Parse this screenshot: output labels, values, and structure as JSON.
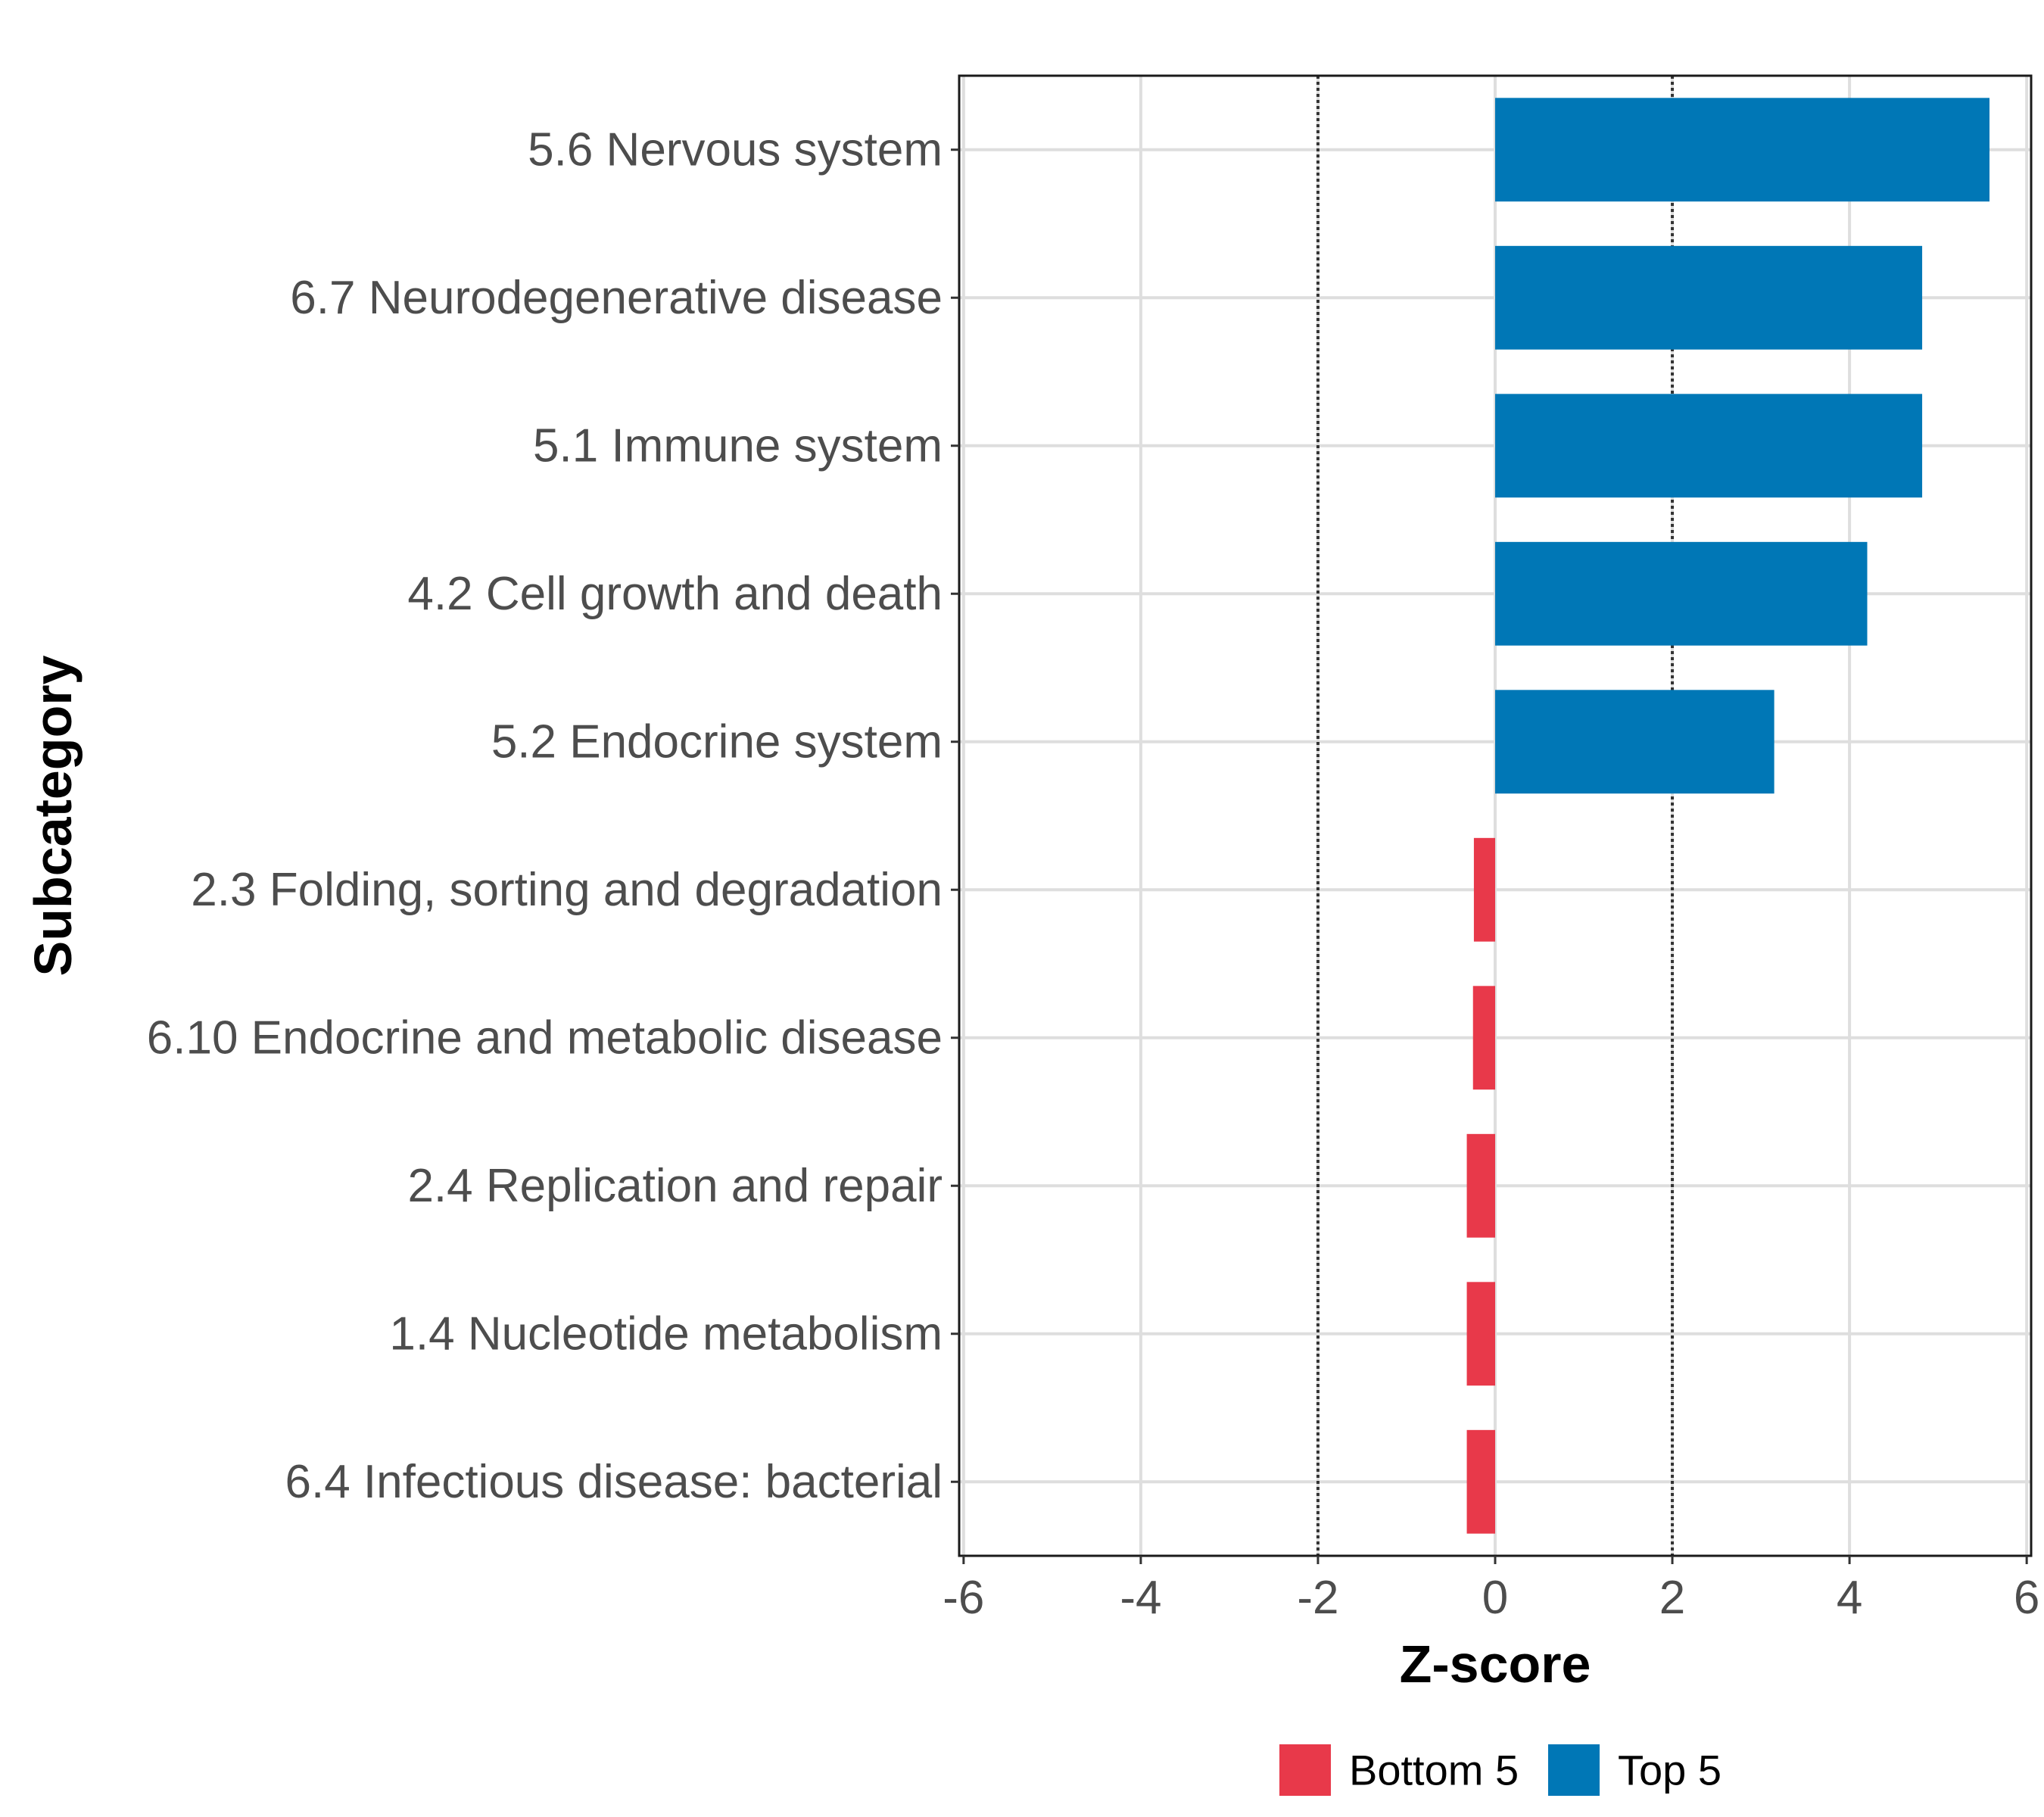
{
  "chart_data": {
    "type": "bar",
    "orientation": "horizontal",
    "xlabel": "Z-score",
    "ylabel": "Subcategory",
    "xlim": [
      -6.05,
      6.05
    ],
    "xticks": [
      -6,
      -4,
      -2,
      0,
      2,
      4,
      6
    ],
    "xtick_labels": [
      "-6",
      "-4",
      "-2",
      "0",
      "2",
      "4",
      "6"
    ],
    "reference_lines": [
      -2,
      2
    ],
    "grid": true,
    "legend_position": "bottom",
    "colors": {
      "Bottom 5": "#E8394A",
      "Top 5": "#0077B6"
    },
    "legend": [
      "Bottom 5",
      "Top 5"
    ],
    "bars": [
      {
        "category": "5.6 Nervous system",
        "value": 5.58,
        "group": "Top 5"
      },
      {
        "category": "6.7 Neurodegenerative disease",
        "value": 4.82,
        "group": "Top 5"
      },
      {
        "category": "5.1 Immune system",
        "value": 4.82,
        "group": "Top 5"
      },
      {
        "category": "4.2 Cell growth and death",
        "value": 4.2,
        "group": "Top 5"
      },
      {
        "category": "5.2 Endocrine system",
        "value": 3.15,
        "group": "Top 5"
      },
      {
        "category": "2.3 Folding, sorting and degradation",
        "value": -0.24,
        "group": "Bottom 5"
      },
      {
        "category": "6.10 Endocrine and metabolic disease",
        "value": -0.25,
        "group": "Bottom 5"
      },
      {
        "category": "2.4 Replication and repair",
        "value": -0.32,
        "group": "Bottom 5"
      },
      {
        "category": "1.4 Nucleotide metabolism",
        "value": -0.32,
        "group": "Bottom 5"
      },
      {
        "category": "6.4 Infectious disease: bacterial",
        "value": -0.32,
        "group": "Bottom 5"
      }
    ]
  }
}
